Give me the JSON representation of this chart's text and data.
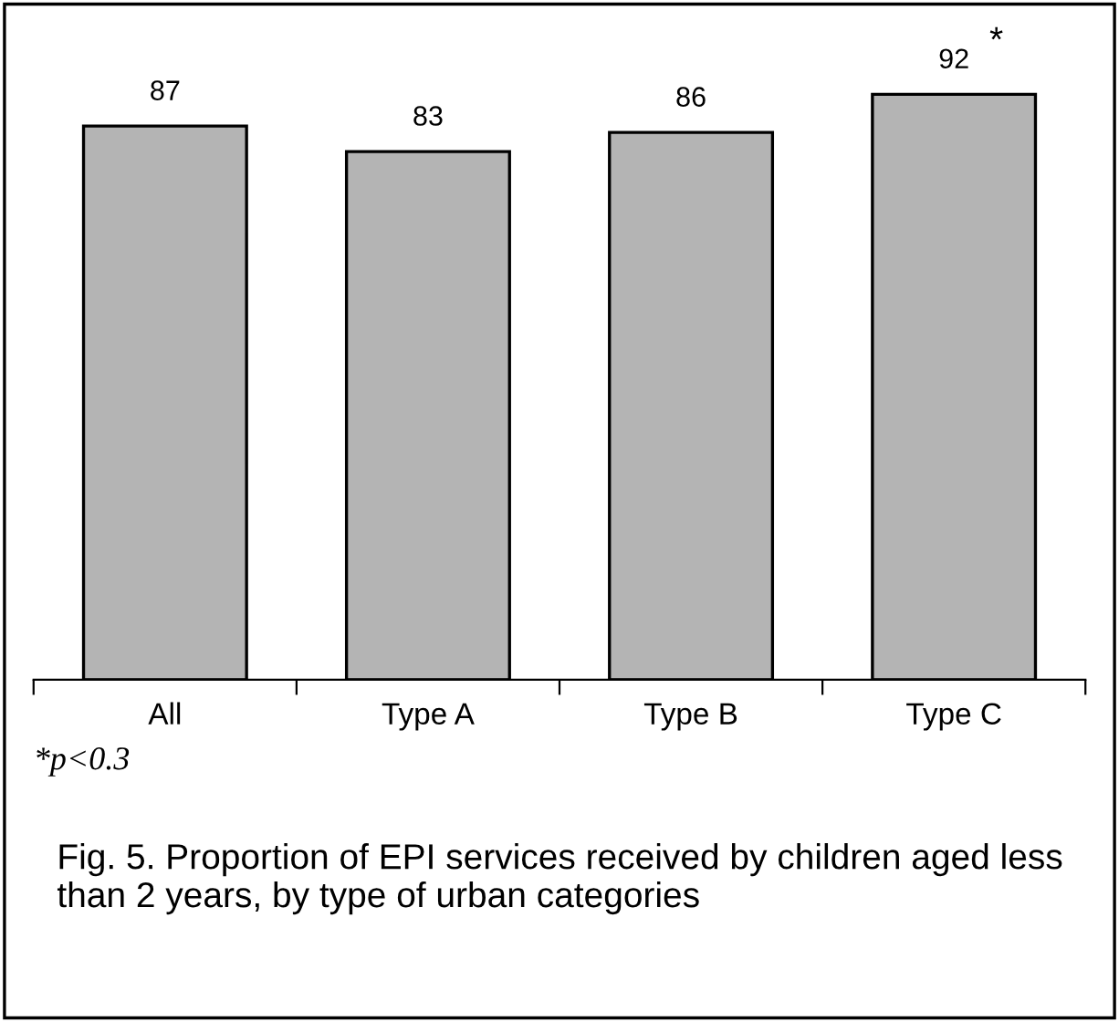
{
  "chart_data": {
    "type": "bar",
    "title": "Fig. 5. Proportion of EPI services received by children aged less than 2 years, by type of urban categories",
    "categories": [
      "All",
      "Type A",
      "Type B",
      "Type C"
    ],
    "values": [
      87,
      83,
      86,
      92
    ],
    "color": "#b4b4b4",
    "relative": false,
    "data_labels": true,
    "grid": false,
    "legend": false,
    "tick_labels": "x",
    "annotations": [
      {
        "text": "*",
        "x": "Type C",
        "y": 92
      },
      "*p<0.3"
    ]
  }
}
